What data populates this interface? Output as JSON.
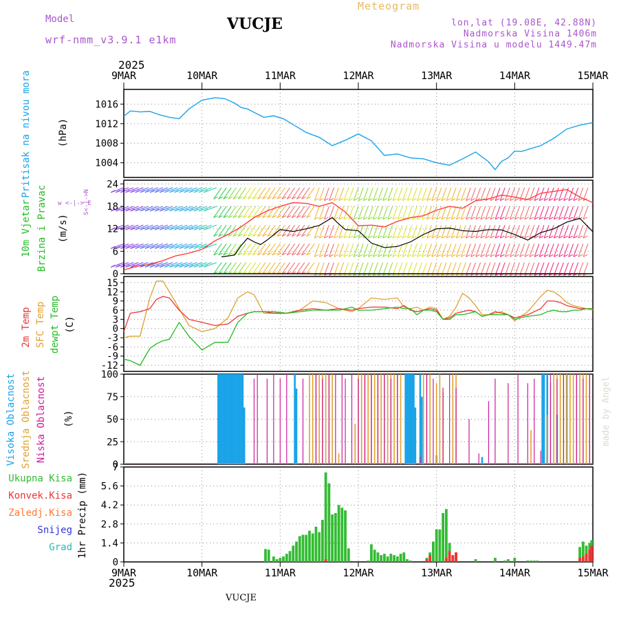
{
  "header": {
    "model_label": "Model",
    "model_name": "wrf-nmm_v3.9.1  e1km",
    "station": "VUCJE",
    "product": "Meteogram",
    "coords": "lon,lat (19.08E, 42.88N)",
    "elevation": "Nadmorska Visina 1406m",
    "model_elevation": "Nadmorska Visina u modelu 1449.47m",
    "footer_station": "VUCJE",
    "credit": "made by Angel"
  },
  "colors": {
    "pressure": "#1aa3e8",
    "wind_label": "#22bb22",
    "temp2m": "#ee3333",
    "sfc": "#e0a030",
    "dewpt": "#22bb22",
    "high_cloud": "#1aa3e8",
    "mid_cloud": "#e0a030",
    "low_cloud": "#cc1a9a",
    "total_precip": "#33bb33",
    "conv_precip": "#ee3333",
    "frozen_precip": "#ff7733",
    "snow": "#3333dd",
    "hail": "#22bbbb",
    "model_title": "#aa55cc",
    "product_title": "#e8b860"
  },
  "time_axis": {
    "year": "2025",
    "ticks": [
      "9MAR",
      "10MAR",
      "11MAR",
      "12MAR",
      "13MAR",
      "14MAR",
      "15MAR"
    ]
  },
  "panels": {
    "pressure": {
      "label": "Pritisak na nivou mora",
      "unit": "(hPa)"
    },
    "wind": {
      "label1": "10m Vjetar",
      "label2": "Brzina i Pravac",
      "unit": "(m/s)",
      "compass_h": "w <-|-> E",
      "compass_v": "S<-|->N"
    },
    "temp": {
      "label1": "2m Temp",
      "label2": "SFC Temp",
      "label3": "dewpt Temp",
      "unit": "(C)"
    },
    "cloud": {
      "label1": "Visoka Oblacnost",
      "label2": "Srednja Oblacnost",
      "label3": "Niska Oblacnost",
      "unit": "(%)"
    },
    "precip": {
      "unit": "1hr Precip (mm)",
      "legend": [
        "Ukupna Kisa",
        "Konvek.Kisa",
        "Zaledj.Kisa",
        "Snijeg",
        "Grad"
      ]
    }
  },
  "chart_data": [
    {
      "type": "line",
      "ylim": [
        1001,
        1019
      ],
      "yticks": [
        1004,
        1008,
        1012,
        1016
      ],
      "xlim": [
        0,
        144
      ],
      "x": [
        0,
        2,
        5,
        8,
        11,
        14,
        17,
        20,
        24,
        28,
        31,
        34,
        36,
        38,
        40,
        43,
        46,
        49,
        52,
        56,
        60,
        64,
        68,
        72,
        76,
        80,
        84,
        88,
        92,
        96,
        100,
        104,
        108,
        112,
        114,
        116,
        118,
        120,
        122,
        124,
        128,
        132,
        136,
        140,
        144
      ],
      "series": [
        {
          "values": [
            1013.5,
            1014.6,
            1014.4,
            1014.5,
            1013.8,
            1013.3,
            1013.0,
            1015.0,
            1016.8,
            1017.3,
            1017.1,
            1016.2,
            1015.3,
            1015.0,
            1014.3,
            1013.3,
            1013.6,
            1013.0,
            1011.8,
            1010.2,
            1009.2,
            1007.5,
            1008.6,
            1009.9,
            1008.5,
            1005.5,
            1005.8,
            1005.0,
            1004.8,
            1004.0,
            1003.5,
            1004.8,
            1006.2,
            1004.2,
            1002.6,
            1004.3,
            1005.0,
            1006.4,
            1006.3,
            1006.7,
            1007.5,
            1009.0,
            1010.9,
            1011.7,
            1012.2
          ]
        }
      ]
    },
    {
      "type": "line",
      "ylim": [
        0,
        25
      ],
      "yticks": [
        0,
        6,
        12,
        18,
        24
      ],
      "xlim": [
        0,
        144
      ],
      "series": [
        {
          "name": "mean",
          "x": [
            30,
            34,
            36,
            38,
            40,
            42,
            44,
            48,
            52,
            56,
            60,
            64,
            66,
            68,
            72,
            76,
            80,
            84,
            88,
            92,
            96,
            100,
            104,
            108,
            112,
            116,
            120,
            124,
            128,
            132,
            136,
            140,
            144
          ],
          "values": [
            4.5,
            5.0,
            7.5,
            9.5,
            8.5,
            7.8,
            9.0,
            11.8,
            11.3,
            12.0,
            12.9,
            15.0,
            13.3,
            11.8,
            11.5,
            8.2,
            7.0,
            7.3,
            8.5,
            10.5,
            12.0,
            12.2,
            11.5,
            11.3,
            11.8,
            11.7,
            10.5,
            9.0,
            11.0,
            12.0,
            13.8,
            14.8,
            11.2
          ]
        },
        {
          "name": "gust",
          "x": [
            0,
            4,
            8,
            12,
            16,
            20,
            24,
            28,
            32,
            36,
            40,
            44,
            48,
            52,
            56,
            60,
            64,
            68,
            72,
            76,
            80,
            84,
            88,
            92,
            96,
            100,
            104,
            108,
            112,
            116,
            120,
            124,
            128,
            132,
            136,
            140,
            144
          ],
          "values": [
            1.0,
            2.0,
            2.5,
            3.5,
            4.8,
            5.5,
            6.5,
            8.8,
            10.5,
            12.5,
            15.0,
            16.8,
            18.0,
            19.0,
            18.8,
            18.0,
            19.0,
            16.5,
            12.8,
            13.0,
            12.5,
            14.0,
            15.0,
            15.5,
            17.0,
            18.0,
            17.5,
            19.5,
            20.0,
            21.0,
            20.5,
            19.8,
            21.5,
            22.0,
            22.5,
            20.5,
            19.0
          ]
        }
      ]
    },
    {
      "type": "line",
      "ylim": [
        -14,
        17
      ],
      "yticks": [
        -12,
        -9,
        -6,
        -3,
        0,
        3,
        6,
        9,
        12,
        15
      ],
      "xlim": [
        0,
        144
      ],
      "x": [
        0,
        2,
        5,
        8,
        10,
        12,
        14,
        17,
        20,
        24,
        28,
        32,
        35,
        38,
        40,
        43,
        46,
        50,
        54,
        58,
        62,
        66,
        70,
        72,
        76,
        80,
        84,
        86,
        88,
        90,
        92,
        94,
        96,
        98,
        100,
        102,
        104,
        106,
        108,
        110,
        112,
        114,
        116,
        118,
        120,
        124,
        128,
        130,
        132,
        134,
        136,
        138,
        140,
        142,
        144
      ],
      "series": [
        {
          "name": "2m",
          "values": [
            -1.0,
            5.0,
            5.5,
            6.5,
            9.5,
            10.5,
            10.0,
            6.0,
            3.0,
            2.0,
            1.0,
            1.5,
            4.0,
            5.0,
            5.5,
            5.5,
            5.0,
            5.0,
            6.0,
            6.5,
            6.0,
            6.5,
            6.0,
            6.5,
            7.0,
            7.0,
            6.5,
            7.5,
            6.0,
            5.5,
            6.0,
            6.5,
            6.0,
            3.0,
            3.5,
            5.0,
            5.5,
            6.0,
            5.5,
            4.0,
            4.5,
            5.5,
            5.0,
            4.5,
            3.5,
            4.5,
            6.5,
            9.0,
            9.0,
            8.5,
            7.5,
            7.0,
            6.5,
            6.5,
            6.5
          ]
        },
        {
          "name": "sfc",
          "values": [
            -3.0,
            -2.5,
            -2.5,
            10.0,
            15.5,
            15.5,
            12.0,
            6.5,
            1.0,
            -1.0,
            0.0,
            3.5,
            10.0,
            12.0,
            11.0,
            5.0,
            5.0,
            5.0,
            6.0,
            9.0,
            8.5,
            6.5,
            5.5,
            6.5,
            10.0,
            9.5,
            10.0,
            7.0,
            6.5,
            7.0,
            6.0,
            7.0,
            6.5,
            3.0,
            4.0,
            7.0,
            11.5,
            10.0,
            7.5,
            4.5,
            4.5,
            5.0,
            5.5,
            4.5,
            2.5,
            5.5,
            10.5,
            12.5,
            12.0,
            10.5,
            8.5,
            7.5,
            7.0,
            6.5,
            6.0
          ]
        },
        {
          "name": "dewpt",
          "values": [
            -10.0,
            -10.5,
            -12.0,
            -6.5,
            -5.0,
            -4.0,
            -3.5,
            2.0,
            -2.5,
            -7.0,
            -4.5,
            -4.5,
            2.0,
            5.0,
            5.5,
            5.5,
            5.5,
            5.0,
            5.5,
            6.0,
            6.0,
            6.0,
            7.0,
            6.0,
            6.0,
            6.5,
            7.0,
            6.5,
            6.5,
            4.5,
            6.0,
            6.0,
            5.5,
            3.0,
            3.0,
            4.5,
            4.5,
            5.0,
            5.5,
            4.0,
            4.5,
            4.5,
            4.5,
            4.5,
            3.0,
            4.0,
            4.5,
            5.5,
            6.0,
            5.5,
            5.5,
            6.0,
            6.0,
            6.5,
            6.5
          ]
        }
      ]
    },
    {
      "type": "bar",
      "ylim": [
        0,
        100
      ],
      "yticks": [
        0,
        25,
        50,
        75,
        100
      ],
      "xlim": [
        0,
        144
      ],
      "series": [
        {
          "name": "high",
          "x": [
            29,
            29.5,
            30,
            30.5,
            31,
            31.5,
            32,
            32.5,
            33,
            33.5,
            34,
            34.5,
            35,
            35.5,
            36,
            36.5,
            37,
            52.5,
            53,
            86.5,
            87,
            87.5,
            88,
            88.5,
            89,
            89.5,
            91,
            91.5,
            96,
            110,
            128.5,
            129,
            130,
            133,
            136
          ],
          "values": [
            100,
            100,
            100,
            100,
            100,
            100,
            100,
            100,
            100,
            100,
            100,
            100,
            100,
            100,
            100,
            100,
            63,
            100,
            84,
            100,
            100,
            100,
            100,
            100,
            100,
            63,
            100,
            75,
            10,
            8,
            100,
            100,
            100,
            55,
            100
          ]
        },
        {
          "name": "mid",
          "x": [
            57,
            58,
            59,
            60,
            61,
            62,
            63,
            64,
            66,
            71,
            72,
            73,
            74,
            75,
            76,
            77,
            78,
            79,
            80,
            81,
            82,
            83,
            84,
            85,
            92,
            93,
            94,
            96,
            97,
            98,
            101,
            102,
            125,
            130,
            131,
            132,
            133,
            134,
            135,
            136,
            137,
            138,
            139,
            140,
            141,
            142,
            143
          ],
          "values": [
            100,
            100,
            100,
            100,
            100,
            100,
            100,
            100,
            12,
            45,
            100,
            100,
            100,
            100,
            100,
            100,
            100,
            100,
            100,
            100,
            100,
            100,
            100,
            100,
            100,
            100,
            100,
            90,
            100,
            80,
            100,
            100,
            38,
            55,
            90,
            100,
            100,
            100,
            100,
            100,
            100,
            100,
            100,
            100,
            100,
            100,
            100
          ]
        },
        {
          "name": "low",
          "x": [
            40,
            41,
            44,
            46,
            48,
            50,
            55,
            59,
            61,
            63,
            65,
            67,
            68,
            70,
            72,
            74,
            76,
            78,
            80,
            82,
            84,
            91,
            93,
            95,
            98,
            100,
            102,
            106,
            109,
            112,
            114,
            118,
            121,
            124,
            126,
            128,
            131,
            133,
            135,
            139,
            141,
            143
          ],
          "values": [
            95,
            100,
            95,
            100,
            95,
            100,
            95,
            100,
            95,
            100,
            100,
            100,
            95,
            100,
            95,
            100,
            100,
            100,
            100,
            95,
            100,
            8,
            100,
            95,
            85,
            100,
            85,
            50,
            12,
            70,
            95,
            90,
            100,
            90,
            95,
            15,
            100,
            95,
            100,
            100,
            95,
            100
          ]
        }
      ]
    },
    {
      "type": "bar",
      "ylim": [
        0,
        7
      ],
      "yticks": [
        0,
        1.4,
        2.8,
        4.2,
        5.6,
        7
      ],
      "xlim": [
        0,
        144
      ],
      "series": [
        {
          "name": "Ukupna Kisa",
          "x": [
            43.5,
            44.5,
            46,
            47,
            48,
            49,
            50,
            51,
            52,
            53,
            54,
            55,
            56,
            57,
            58,
            59,
            60,
            61,
            62,
            63,
            64,
            65,
            66,
            67,
            68,
            69,
            75,
            76,
            77,
            78,
            79,
            80,
            81,
            82,
            83,
            84,
            85,
            86,
            87,
            88,
            93,
            94,
            95,
            96,
            97,
            98,
            99,
            100,
            101,
            102,
            108,
            114,
            117,
            118,
            120,
            124,
            125,
            126,
            127,
            140,
            141,
            142,
            143,
            144
          ],
          "values": [
            0.95,
            0.9,
            0.4,
            0.2,
            0.3,
            0.4,
            0.6,
            0.8,
            1.2,
            1.5,
            1.9,
            2.0,
            2.0,
            2.3,
            2.1,
            2.6,
            2.2,
            3.1,
            6.6,
            5.8,
            3.5,
            3.6,
            4.2,
            4.0,
            3.8,
            1.0,
            0.1,
            1.3,
            0.9,
            0.7,
            0.5,
            0.6,
            0.4,
            0.6,
            0.5,
            0.4,
            0.6,
            0.7,
            0.2,
            0.1,
            0.3,
            0.7,
            1.5,
            2.4,
            2.4,
            3.6,
            3.9,
            1.4,
            0.3,
            0.7,
            0.2,
            0.3,
            0.1,
            0.2,
            0.3,
            0.1,
            0.1,
            0.1,
            0.1,
            1.1,
            1.5,
            1.2,
            1.4,
            1.6
          ]
        },
        {
          "name": "Konvek.Kisa",
          "x": [
            62,
            93,
            94,
            99,
            100,
            101,
            102,
            140,
            141,
            142,
            143,
            144
          ],
          "values": [
            0.2,
            0.2,
            0.5,
            0.3,
            0.8,
            0.5,
            0.7,
            0.3,
            0.4,
            0.6,
            0.9,
            1.2
          ]
        }
      ]
    }
  ]
}
